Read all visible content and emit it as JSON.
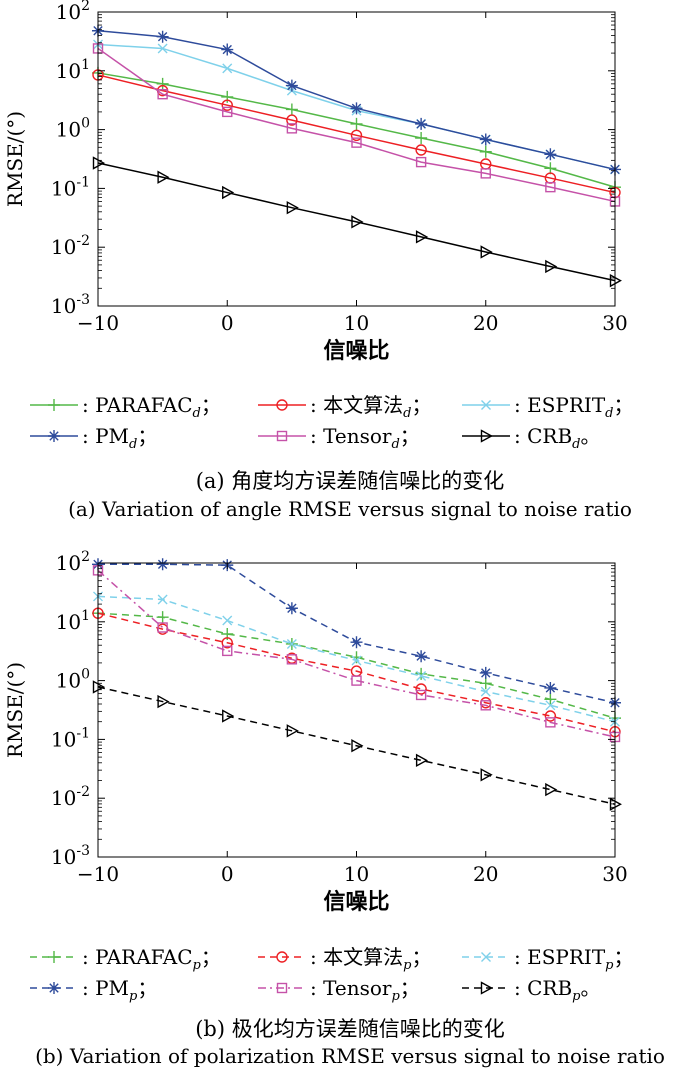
{
  "chart_data": [
    {
      "type": "line",
      "title": "",
      "xlabel": "信噪比",
      "ylabel": "RMSE/(°)",
      "yscale": "log",
      "xlim": [
        -10,
        30
      ],
      "ylim": [
        0.001,
        100
      ],
      "xticks": [
        -10,
        0,
        10,
        20,
        30
      ],
      "xtick_labels": [
        "−10",
        "0",
        "10",
        "20",
        "30"
      ],
      "yticks": [
        0.001,
        0.01,
        0.1,
        1,
        10,
        100
      ],
      "ytick_labels": [
        {
          "base": "10",
          "exp": "-3"
        },
        {
          "base": "10",
          "exp": "-2"
        },
        {
          "base": "10",
          "exp": "-1"
        },
        {
          "base": "10",
          "exp": "0"
        },
        {
          "base": "10",
          "exp": "1"
        },
        {
          "base": "10",
          "exp": "2"
        }
      ],
      "grid": false,
      "legend_position": "below",
      "x": [
        -10,
        -5,
        0,
        5,
        10,
        15,
        20,
        25,
        30
      ],
      "series": [
        {
          "name": "PARAFAC",
          "sub": "d",
          "sep": "；",
          "color": "#54b848",
          "marker": "plus",
          "dash": "solid",
          "values": [
            9.2,
            6.0,
            3.6,
            2.2,
            1.25,
            0.72,
            0.42,
            0.22,
            0.105
          ]
        },
        {
          "name": "本文算法",
          "sub": "d",
          "sep": "；",
          "color": "#ed2024",
          "marker": "circle",
          "dash": "solid",
          "values": [
            8.5,
            4.6,
            2.6,
            1.45,
            0.8,
            0.45,
            0.26,
            0.15,
            0.085
          ]
        },
        {
          "name": "ESPRIT",
          "sub": "d",
          "sep": "；",
          "color": "#7fd1ea",
          "marker": "x",
          "dash": "solid",
          "values": [
            28,
            24,
            11,
            4.6,
            2.1,
            1.25,
            0.68,
            0.38,
            0.21
          ]
        },
        {
          "name": "PM",
          "sub": "d",
          "sep": "；",
          "color": "#2e4b9b",
          "marker": "star",
          "dash": "solid",
          "values": [
            48,
            38,
            23,
            5.6,
            2.3,
            1.25,
            0.68,
            0.38,
            0.21
          ]
        },
        {
          "name": "Tensor",
          "sub": "d",
          "sep": "；",
          "color": "#c552a8",
          "marker": "square",
          "dash": "solid",
          "values": [
            24,
            4.0,
            2.0,
            1.05,
            0.6,
            0.28,
            0.18,
            0.105,
            0.06
          ]
        },
        {
          "name": "CRB",
          "sub": "d",
          "sep": "。",
          "color": "#000000",
          "marker": "triangle-right",
          "dash": "solid",
          "values": [
            0.27,
            0.155,
            0.085,
            0.047,
            0.027,
            0.015,
            0.0083,
            0.0047,
            0.0027
          ]
        }
      ],
      "caption_cn": "(a) 角度均方误差随信噪比的变化",
      "caption_en": "(a) Variation of angle RMSE versus signal to noise ratio"
    },
    {
      "type": "line",
      "title": "",
      "xlabel": "信噪比",
      "ylabel": "RMSE/(°)",
      "yscale": "log",
      "xlim": [
        -10,
        30
      ],
      "ylim": [
        0.001,
        100
      ],
      "xticks": [
        -10,
        0,
        10,
        20,
        30
      ],
      "xtick_labels": [
        "−10",
        "0",
        "10",
        "20",
        "30"
      ],
      "yticks": [
        0.001,
        0.01,
        0.1,
        1,
        10,
        100
      ],
      "ytick_labels": [
        {
          "base": "10",
          "exp": "-3"
        },
        {
          "base": "10",
          "exp": "-2"
        },
        {
          "base": "10",
          "exp": "-1"
        },
        {
          "base": "10",
          "exp": "0"
        },
        {
          "base": "10",
          "exp": "1"
        },
        {
          "base": "10",
          "exp": "2"
        }
      ],
      "grid": false,
      "legend_position": "below",
      "x": [
        -10,
        -5,
        0,
        5,
        10,
        15,
        20,
        25,
        30
      ],
      "series": [
        {
          "name": "PARAFAC",
          "sub": "p",
          "sep": "；",
          "color": "#54b848",
          "marker": "plus",
          "dash": "dash",
          "values": [
            14,
            12,
            6.2,
            4.2,
            2.5,
            1.3,
            0.9,
            0.48,
            0.23
          ]
        },
        {
          "name": "本文算法",
          "sub": "p",
          "sep": "；",
          "color": "#ed2024",
          "marker": "circle",
          "dash": "dash",
          "values": [
            14,
            7.5,
            4.4,
            2.4,
            1.45,
            0.72,
            0.42,
            0.25,
            0.135
          ]
        },
        {
          "name": "ESPRIT",
          "sub": "p",
          "sep": "；",
          "color": "#7fd1ea",
          "marker": "x",
          "dash": "dash",
          "values": [
            27,
            24,
            10.5,
            4.2,
            2.2,
            1.2,
            0.65,
            0.38,
            0.2
          ]
        },
        {
          "name": "PM",
          "sub": "p",
          "sep": "；",
          "color": "#2e4b9b",
          "marker": "star",
          "dash": "dash",
          "values": [
            95,
            95,
            92,
            17,
            4.5,
            2.6,
            1.35,
            0.75,
            0.42
          ]
        },
        {
          "name": "Tensor",
          "sub": "p",
          "sep": "；",
          "color": "#c552a8",
          "marker": "square",
          "dash": "dashdot",
          "values": [
            75,
            8.0,
            3.2,
            2.3,
            1.0,
            0.57,
            0.38,
            0.195,
            0.11
          ]
        },
        {
          "name": "CRB",
          "sub": "p",
          "sep": "。",
          "color": "#000000",
          "marker": "triangle-right",
          "dash": "dash",
          "values": [
            0.78,
            0.44,
            0.25,
            0.14,
            0.078,
            0.044,
            0.025,
            0.014,
            0.0079
          ]
        }
      ],
      "caption_cn": "(b) 极化均方误差随信噪比的变化",
      "caption_en": "(b) Variation of polarization RMSE versus signal to noise ratio"
    }
  ]
}
